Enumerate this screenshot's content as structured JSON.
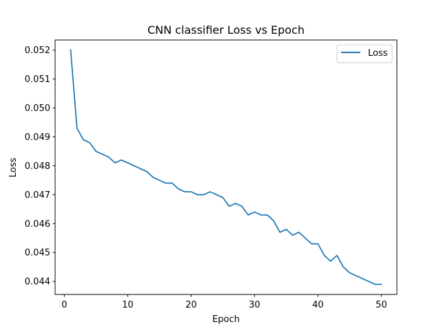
{
  "chart_data": {
    "type": "line",
    "title": "CNN classifier Loss vs Epoch",
    "xlabel": "Epoch",
    "ylabel": "Loss",
    "xlim": [
      -1.45,
      52.45
    ],
    "ylim": [
      0.04355,
      0.05235
    ],
    "xticks": [
      0,
      10,
      20,
      30,
      40,
      50
    ],
    "yticks": [
      0.044,
      0.045,
      0.046,
      0.047,
      0.048,
      0.049,
      0.05,
      0.051,
      0.052
    ],
    "ytick_labels": [
      "0.044",
      "0.045",
      "0.046",
      "0.047",
      "0.048",
      "0.049",
      "0.050",
      "0.051",
      "0.052"
    ],
    "grid": false,
    "legend_position": "top-right",
    "series": [
      {
        "name": "Loss",
        "color": "#1f77b4",
        "x": [
          1,
          2,
          3,
          4,
          5,
          6,
          7,
          8,
          9,
          10,
          11,
          12,
          13,
          14,
          15,
          16,
          17,
          18,
          19,
          20,
          21,
          22,
          23,
          24,
          25,
          26,
          27,
          28,
          29,
          30,
          31,
          32,
          33,
          34,
          35,
          36,
          37,
          38,
          39,
          40,
          41,
          42,
          43,
          44,
          45,
          46,
          47,
          48,
          49,
          50
        ],
        "y": [
          0.052,
          0.0493,
          0.0489,
          0.0488,
          0.0485,
          0.0484,
          0.0483,
          0.0481,
          0.0482,
          0.0481,
          0.048,
          0.0479,
          0.0478,
          0.0476,
          0.0475,
          0.0474,
          0.0474,
          0.0472,
          0.0471,
          0.0471,
          0.047,
          0.047,
          0.0471,
          0.047,
          0.0469,
          0.0466,
          0.0467,
          0.0466,
          0.0463,
          0.0464,
          0.0463,
          0.0463,
          0.0461,
          0.0457,
          0.0458,
          0.0456,
          0.0457,
          0.0455,
          0.0453,
          0.0453,
          0.0449,
          0.0447,
          0.0449,
          0.0445,
          0.0443,
          0.0442,
          0.0441,
          0.044,
          0.0439,
          0.0439
        ]
      }
    ]
  }
}
